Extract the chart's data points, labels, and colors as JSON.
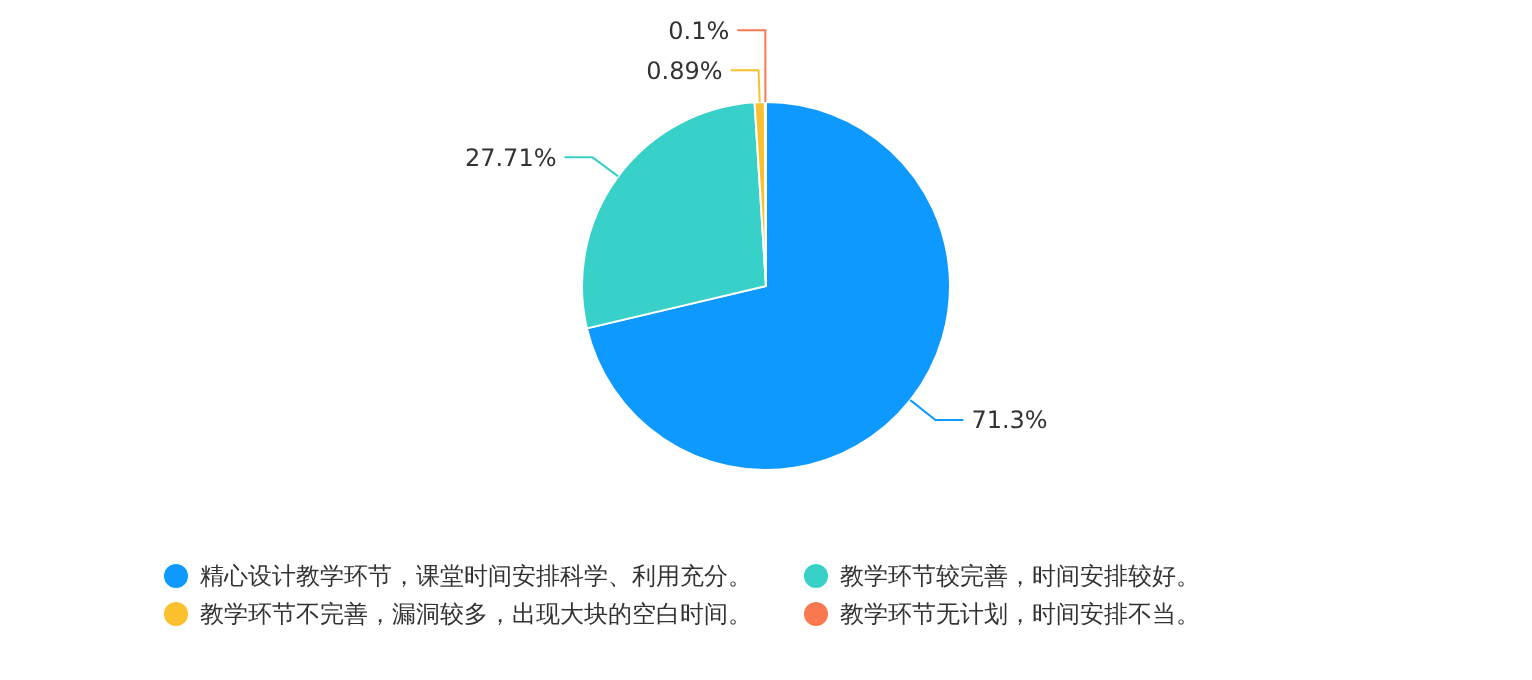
{
  "chart_data": {
    "type": "pie",
    "categories": [
      "精心设计教学环节，课堂时间安排科学、利用充分。",
      "教学环节较完善，时间安排较好。",
      "教学环节不完善，漏洞较多，出现大块的空白时间。",
      "教学环节无计划，时间安排不当。"
    ],
    "values": [
      71.3,
      27.71,
      0.89,
      0.1
    ],
    "colors": [
      "#0e99ff",
      "#37d1c9",
      "#fbc02d",
      "#fa7850"
    ],
    "value_labels": [
      "71.3%",
      "27.71%",
      "0.89%",
      "0.1%"
    ],
    "legend": "bottom"
  }
}
